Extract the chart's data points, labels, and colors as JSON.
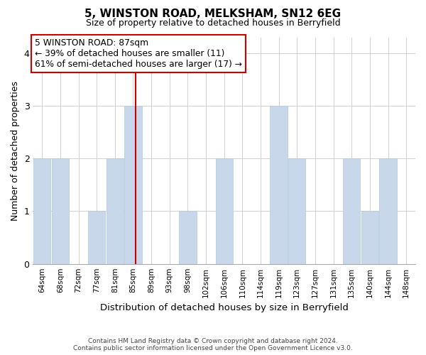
{
  "title1": "5, WINSTON ROAD, MELKSHAM, SN12 6EG",
  "title2": "Size of property relative to detached houses in Berryfield",
  "xlabel": "Distribution of detached houses by size in Berryfield",
  "ylabel": "Number of detached properties",
  "categories": [
    "64sqm",
    "68sqm",
    "72sqm",
    "77sqm",
    "81sqm",
    "85sqm",
    "89sqm",
    "93sqm",
    "98sqm",
    "102sqm",
    "106sqm",
    "110sqm",
    "114sqm",
    "119sqm",
    "123sqm",
    "127sqm",
    "131sqm",
    "135sqm",
    "140sqm",
    "144sqm",
    "148sqm"
  ],
  "values": [
    2,
    2,
    0,
    1,
    2,
    3,
    0,
    0,
    1,
    0,
    2,
    0,
    0,
    3,
    2,
    0,
    0,
    2,
    1,
    2,
    0
  ],
  "bar_color": "#c8d8ea",
  "bar_edge_color": "#b0c8e0",
  "vline_x_idx": 5,
  "vline_color": "#cc0000",
  "annotation_lines": [
    "5 WINSTON ROAD: 87sqm",
    "← 39% of detached houses are smaller (11)",
    "61% of semi-detached houses are larger (17) →"
  ],
  "annotation_box_edge": "#cc0000",
  "ylim": [
    0,
    4.3
  ],
  "yticks": [
    0,
    1,
    2,
    3,
    4
  ],
  "footer": "Contains HM Land Registry data © Crown copyright and database right 2024.\nContains public sector information licensed under the Open Government Licence v3.0.",
  "bg_color": "#ffffff",
  "title1_fontsize": 11,
  "title2_fontsize": 9
}
